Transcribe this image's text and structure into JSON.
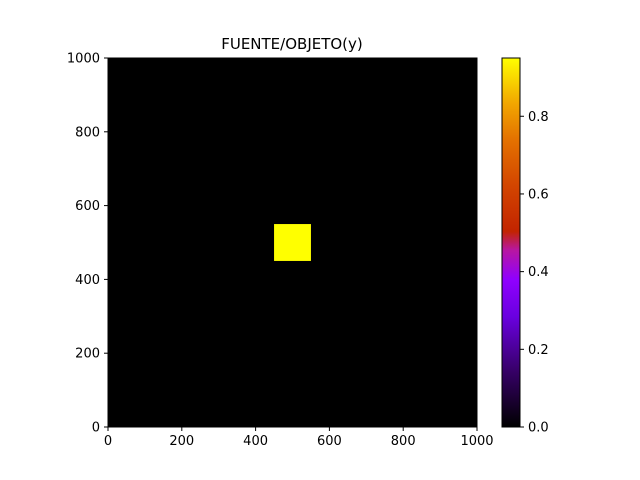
{
  "chart_data": {
    "type": "heatmap",
    "title": "FUENTE/OBJETO(y)",
    "xlabel": "",
    "ylabel": "",
    "xlim": [
      0,
      1000
    ],
    "ylim": [
      0,
      1000
    ],
    "xticks": [
      0,
      200,
      400,
      600,
      800,
      1000
    ],
    "yticks": [
      0,
      200,
      400,
      600,
      800,
      1000
    ],
    "background_value": 0.0,
    "regions": [
      {
        "x": [
          450,
          550
        ],
        "y": [
          450,
          550
        ],
        "value": 0.95
      }
    ],
    "colormap": "gnuplot",
    "colorbar": {
      "range": [
        0.0,
        0.95
      ],
      "ticks": [
        0.0,
        0.2,
        0.4,
        0.6,
        0.8
      ],
      "tick_labels": [
        "0.0",
        "0.2",
        "0.4",
        "0.6",
        "0.8"
      ]
    },
    "grid": false,
    "colors": {
      "low": "#000000",
      "high": "#ffff00"
    }
  }
}
